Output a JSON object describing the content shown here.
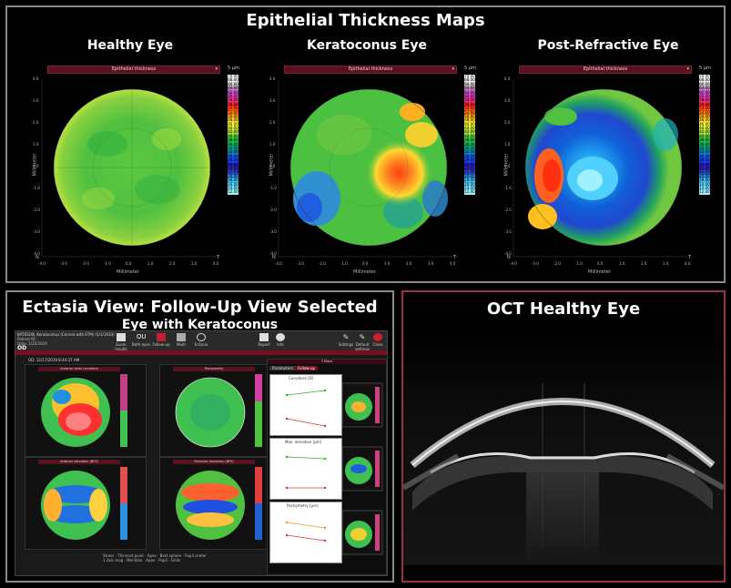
{
  "top_panel": {
    "title": "Epithelial Thickness Maps",
    "maps": [
      {
        "title": "Healthy Eye",
        "bar_label": "Epithelial thickness",
        "unit": "5 µm",
        "axis_label": "Millimeter",
        "ylabel": "Millimeter",
        "corner_n": "N",
        "corner_t": "T"
      },
      {
        "title": "Keratoconus Eye",
        "bar_label": "Epithelial thickness",
        "unit": "5 µm",
        "axis_label": "Millimeter",
        "ylabel": "Millimeter",
        "corner_n": "N",
        "corner_t": "T"
      },
      {
        "title": "Post-Refractive Eye",
        "bar_label": "Epithelial thickness",
        "unit": "5 µm",
        "axis_label": "Millimeter",
        "ylabel": "Millimeter",
        "corner_n": "N",
        "corner_t": "T"
      }
    ],
    "x_ticks": [
      "-4.0",
      "-3.0",
      "-2.0",
      "-1.0",
      "0.0",
      "1.0",
      "2.0",
      "3.0",
      "4.0"
    ],
    "y_ticks": [
      "4.0",
      "3.0",
      "2.0",
      "1.0",
      "0.0",
      "-1.0",
      "-2.0",
      "-3.0",
      "-4.0"
    ],
    "scale_values": [
      "70.00",
      "68.00",
      "66.00",
      "64.00",
      "62.00",
      "60.00",
      "58.00",
      "56.00",
      "54.00",
      "52.00",
      "50.00",
      "48.00",
      "46.00",
      "44.00",
      "42.00",
      "40.00",
      "38.00",
      "36.00",
      "34.00",
      "32.00",
      "30.00",
      "28.00",
      "26.00",
      "24.00",
      "22.00",
      "20.00",
      "18.00",
      "16.00",
      "14.00",
      "12.00"
    ],
    "scale_colors": [
      "#ffffff",
      "#e8e8e8",
      "#d0d0d0",
      "#c080c0",
      "#d050d0",
      "#e040c0",
      "#f03080",
      "#ff2020",
      "#ff5010",
      "#ff8010",
      "#ffb020",
      "#ffd830",
      "#ffff40",
      "#d8f040",
      "#a0e040",
      "#60d040",
      "#20c040",
      "#10b060",
      "#10a090",
      "#1080c0",
      "#1060e0",
      "#2040f0",
      "#2020d0",
      "#4020b0",
      "#2050c0",
      "#3090e0",
      "#40b8f0",
      "#60d8ff",
      "#80e8ff",
      "#a0f0ff"
    ]
  },
  "bottom_left": {
    "title": "Ectasia View: Follow-Up View Selected",
    "subtitle": "Eye with Keratoconus",
    "app": {
      "patient_line1": "BATESON, Keratoconus (Cornea with ETM) (1/1/1933)",
      "patient_line2": "Patient ID:",
      "patient_line3": "Date: 1/25/2019",
      "eye": "OD",
      "exam": "OD: 12/17/2019 8:44:37 AM",
      "toolbar": [
        "Exam results",
        "Both eyes",
        "Follow-up",
        "Multi",
        "Ectasia",
        "Report",
        "Info",
        "Settings",
        "Default settings",
        "Close"
      ],
      "maps": [
        "Anterior axial curvature",
        "Pachymetry",
        "Anterior elevation (BFS)",
        "Posterior elevation (BFS)"
      ],
      "tabs": [
        "Parameters",
        "Follow-up"
      ],
      "graphs": [
        "Curvature [D]",
        "Max. elevation [µm]",
        "Pachymetry [µm]"
      ],
      "right_header": "3 Maps",
      "legend": [
        "Stress",
        "Thinnest point",
        "Apex",
        "Best sphere",
        "Pupil center",
        "1 Axis mag",
        "Meridian",
        "Apex",
        "Pupil",
        "Grids"
      ]
    }
  },
  "bottom_right": {
    "title": "OCT Healthy Eye"
  },
  "colors": {
    "panel_border": "#8a8a8a",
    "oct_border": "#9a3444",
    "app_accent": "#7a0f22"
  }
}
